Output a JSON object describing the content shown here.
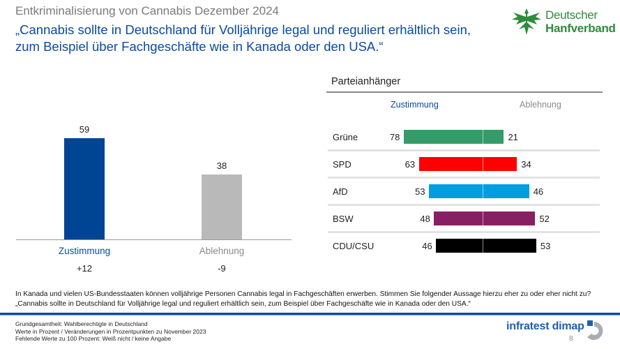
{
  "header": {
    "kicker": "Entkriminalisierung von Cannabis Dezember 2024",
    "headline": "„Cannabis sollte in Deutschland für Volljährige legal und reguliert erhältlich sein, zum Beispiel über Fachgeschäfte wie in Kanada oder den USA.“"
  },
  "logos": {
    "dhv_line1": "Deutscher",
    "dhv_line2": "Hanfverband",
    "institute": "infratest dimap"
  },
  "colors": {
    "zustimmung": "#004494",
    "ablehnung": "#b9b9b9",
    "title_blue": "#0a4aa0",
    "gruene": "#349c68",
    "spd": "#ff0000",
    "afd": "#009ee0",
    "bsw": "#862062",
    "cducsu": "#000000"
  },
  "chart_data": [
    {
      "type": "bar",
      "title": "",
      "categories": [
        "Zustimmung",
        "Ablehnung"
      ],
      "values": [
        59,
        38
      ],
      "changes": [
        "+12",
        "-9"
      ],
      "ylim": [
        0,
        100
      ],
      "xlabel": "",
      "ylabel": "",
      "grid": false
    },
    {
      "type": "bar",
      "orientation": "horizontal-diverging",
      "title": "Parteianhänger",
      "columns": [
        "Zustimmung",
        "Ablehnung"
      ],
      "categories": [
        "Grüne",
        "SPD",
        "AfD",
        "BSW",
        "CDU/CSU"
      ],
      "series": [
        {
          "name": "Zustimmung",
          "values": [
            78,
            63,
            53,
            48,
            46
          ]
        },
        {
          "name": "Ablehnung",
          "values": [
            21,
            34,
            46,
            52,
            53
          ]
        }
      ],
      "bar_colors": [
        "#349c68",
        "#ff0000",
        "#009ee0",
        "#862062",
        "#000000"
      ],
      "grid": false
    }
  ],
  "question": "In Kanada und vielen US-Bundesstaaten können volljährige Personen Cannabis legal in Fachgeschäften erwerben. Stimmen Sie folgender Aussage hierzu eher zu oder eher nicht zu? „Cannabis sollte in Deutschland für Volljährige legal und reguliert erhältlich sein, zum Beispiel über Fachgeschäfte wie in Kanada oder den USA.“",
  "footnotes": [
    "Grundgesamtheit: Wahlberechtigte in Deutschland",
    "Werte in Prozent / Veränderungen in Prozentpunkten zu November 2023",
    "Fehlende Werte zu 100 Prozent: Weiß nicht / keine Angabe"
  ],
  "page_number": "8"
}
